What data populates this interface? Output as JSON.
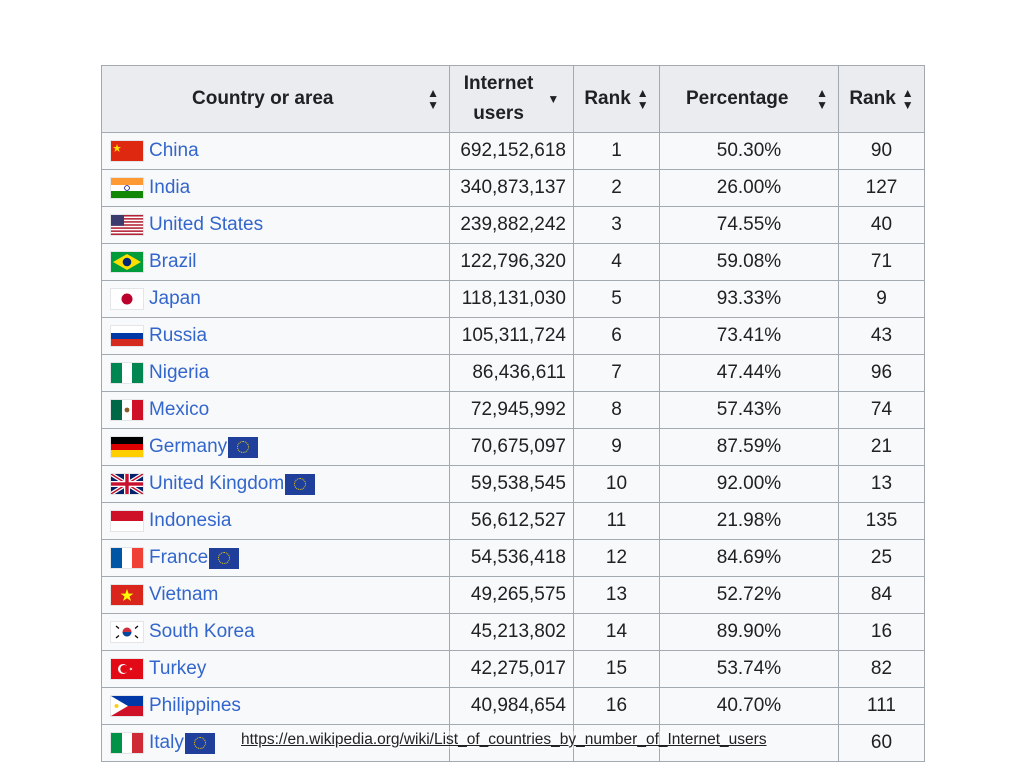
{
  "headers": {
    "country": "Country or area",
    "users_line1": "Internet",
    "users_line2": "users",
    "rank": "Rank",
    "percentage": "Percentage",
    "rank2": "Rank"
  },
  "rows": [
    {
      "country": "China",
      "flag": "cn",
      "eu": false,
      "users": "692,152,618",
      "rank": "1",
      "pct": "50.30%",
      "rank2": "90"
    },
    {
      "country": "India",
      "flag": "in",
      "eu": false,
      "users": "340,873,137",
      "rank": "2",
      "pct": "26.00%",
      "rank2": "127"
    },
    {
      "country": "United States",
      "flag": "us",
      "eu": false,
      "users": "239,882,242",
      "rank": "3",
      "pct": "74.55%",
      "rank2": "40"
    },
    {
      "country": "Brazil",
      "flag": "br",
      "eu": false,
      "users": "122,796,320",
      "rank": "4",
      "pct": "59.08%",
      "rank2": "71"
    },
    {
      "country": "Japan",
      "flag": "jp",
      "eu": false,
      "users": "118,131,030",
      "rank": "5",
      "pct": "93.33%",
      "rank2": "9"
    },
    {
      "country": "Russia",
      "flag": "ru",
      "eu": false,
      "users": "105,311,724",
      "rank": "6",
      "pct": "73.41%",
      "rank2": "43"
    },
    {
      "country": "Nigeria",
      "flag": "ng",
      "eu": false,
      "users": "86,436,611",
      "rank": "7",
      "pct": "47.44%",
      "rank2": "96"
    },
    {
      "country": "Mexico",
      "flag": "mx",
      "eu": false,
      "users": "72,945,992",
      "rank": "8",
      "pct": "57.43%",
      "rank2": "74"
    },
    {
      "country": "Germany",
      "flag": "de",
      "eu": true,
      "users": "70,675,097",
      "rank": "9",
      "pct": "87.59%",
      "rank2": "21"
    },
    {
      "country": "United Kingdom",
      "flag": "gb",
      "eu": true,
      "users": "59,538,545",
      "rank": "10",
      "pct": "92.00%",
      "rank2": "13"
    },
    {
      "country": "Indonesia",
      "flag": "id",
      "eu": false,
      "users": "56,612,527",
      "rank": "11",
      "pct": "21.98%",
      "rank2": "135"
    },
    {
      "country": "France",
      "flag": "fr",
      "eu": true,
      "users": "54,536,418",
      "rank": "12",
      "pct": "84.69%",
      "rank2": "25"
    },
    {
      "country": "Vietnam",
      "flag": "vn",
      "eu": false,
      "users": "49,265,575",
      "rank": "13",
      "pct": "52.72%",
      "rank2": "84"
    },
    {
      "country": "South Korea",
      "flag": "kr",
      "eu": false,
      "users": "45,213,802",
      "rank": "14",
      "pct": "89.90%",
      "rank2": "16"
    },
    {
      "country": "Turkey",
      "flag": "tr",
      "eu": false,
      "users": "42,275,017",
      "rank": "15",
      "pct": "53.74%",
      "rank2": "82"
    },
    {
      "country": "Philippines",
      "flag": "ph",
      "eu": false,
      "users": "40,984,654",
      "rank": "16",
      "pct": "40.70%",
      "rank2": "111"
    },
    {
      "country": "Italy",
      "flag": "it",
      "eu": true,
      "users": "",
      "rank": "",
      "pct": "",
      "rank2": "60"
    }
  ],
  "footer_url": "https://en.wikipedia.org/wiki/List_of_countries_by_number_of_Internet_users",
  "icons": {
    "sort": "sort-updown-icon",
    "sort_active": "sort-down-icon"
  },
  "colors": {
    "link": "#3366cc",
    "header_bg": "#eaecf0",
    "cell_bg": "#f8f9fa",
    "border": "#a2a9b1"
  }
}
